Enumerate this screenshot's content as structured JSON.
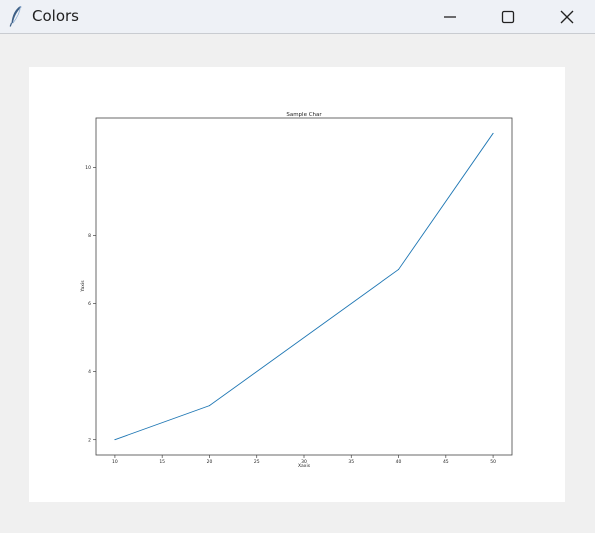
{
  "window": {
    "title": "Colors",
    "icons": {
      "app": "feather-icon",
      "minimize": "minimize-icon",
      "maximize": "maximize-icon",
      "close": "close-icon"
    }
  },
  "chart_data": {
    "type": "line",
    "title": "Sample Char",
    "xlabel": "Xaxis",
    "ylabel": "Yaxis",
    "x": [
      10,
      20,
      40,
      50
    ],
    "series": [
      {
        "values": [
          2,
          3,
          7,
          11
        ],
        "color": "#1f77b4"
      }
    ],
    "xticks": [
      10,
      15,
      20,
      25,
      30,
      35,
      40,
      45,
      50
    ],
    "yticks": [
      2,
      4,
      6,
      8,
      10
    ],
    "xlim": [
      8,
      52
    ],
    "ylim": [
      1.55,
      11.45
    ],
    "grid": false
  }
}
